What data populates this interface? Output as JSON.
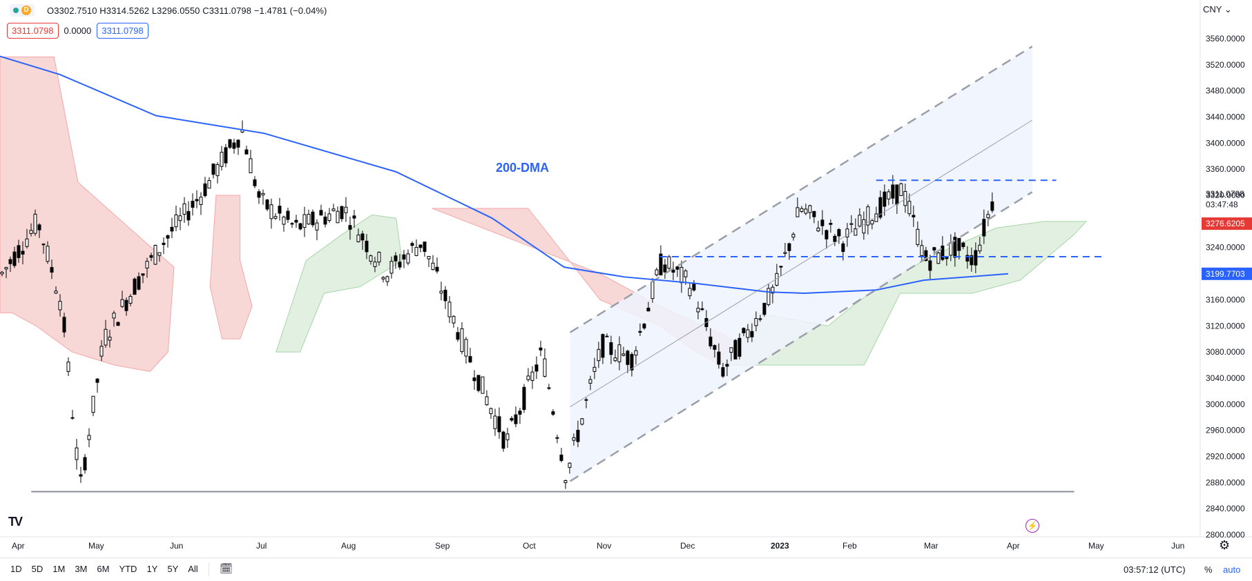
{
  "header": {
    "interval_badge": "D",
    "ohlc_text": "O3302.7510 H3314.5262 L3296.0550 C3311.0798 −1.4781 (−0.04%)",
    "chip_last": "3311.0798",
    "chip_change": "0.0000",
    "chip_close": "3311.0798",
    "currency": "CNY"
  },
  "colors": {
    "candle_body_up": "#ffffff",
    "candle_body_down": "#000000",
    "dma": "#2962ff",
    "cloud_bearish": "#f8d7d7",
    "cloud_bullish": "#e1f0e1",
    "channel_fill": "#eef3fd",
    "last_price": "#e53935",
    "dma_label": "#2962ff"
  },
  "chart_data": {
    "type": "candlestick",
    "title": "",
    "price_range": [
      2800,
      3570
    ],
    "y_ticks": [
      "3560.0000",
      "3520.0000",
      "3480.0000",
      "3440.0000",
      "3400.0000",
      "3360.0000",
      "3320.0000",
      "3280.0000",
      "3240.0000",
      "3200.0000",
      "3160.0000",
      "3120.0000",
      "3080.0000",
      "3040.0000",
      "3000.0000",
      "2960.0000",
      "2920.0000",
      "2880.0000",
      "2840.0000",
      "2800.0000"
    ],
    "x_ticks": [
      "Apr",
      "May",
      "Jun",
      "Jul",
      "Aug",
      "Sep",
      "Oct",
      "Nov",
      "Dec",
      "2023",
      "Feb",
      "Mar",
      "Apr",
      "May",
      "Jun"
    ],
    "annotation": "200-DMA",
    "price_labels": {
      "last_price": "3311.0798",
      "countdown": "03:47:48",
      "cloud_edge": "3276.6205",
      "dma_value": "3199.7703"
    },
    "dma_200": [
      {
        "t": 0.0,
        "v": 3533
      },
      {
        "t": 0.05,
        "v": 3505
      },
      {
        "t": 0.13,
        "v": 3442
      },
      {
        "t": 0.22,
        "v": 3415
      },
      {
        "t": 0.33,
        "v": 3356
      },
      {
        "t": 0.41,
        "v": 3285
      },
      {
        "t": 0.47,
        "v": 3210
      },
      {
        "t": 0.52,
        "v": 3195
      },
      {
        "t": 0.58,
        "v": 3185
      },
      {
        "t": 0.64,
        "v": 3172
      },
      {
        "t": 0.67,
        "v": 3170
      },
      {
        "t": 0.73,
        "v": 3175
      },
      {
        "t": 0.77,
        "v": 3190
      },
      {
        "t": 0.84,
        "v": 3199.77
      }
    ],
    "ichimoku_cloud": {
      "bearish": [
        [
          [
            0.0,
            3532
          ],
          [
            0.045,
            3532
          ],
          [
            0.065,
            3340
          ],
          [
            0.12,
            3250
          ],
          [
            0.145,
            3210
          ],
          [
            0.14,
            3080
          ],
          [
            0.125,
            3050
          ],
          [
            0.095,
            3060
          ],
          [
            0.06,
            3080
          ],
          [
            0.03,
            3120
          ],
          [
            0.01,
            3140
          ],
          [
            0.0,
            3140
          ]
        ],
        [
          [
            0.36,
            3300
          ],
          [
            0.44,
            3300
          ],
          [
            0.5,
            3160
          ],
          [
            0.55,
            3120
          ],
          [
            0.58,
            3080
          ],
          [
            0.6,
            3060
          ],
          [
            0.61,
            3100
          ],
          [
            0.55,
            3150
          ],
          [
            0.5,
            3200
          ]
        ],
        [
          [
            0.18,
            3320
          ],
          [
            0.2,
            3320
          ],
          [
            0.2,
            3220
          ],
          [
            0.21,
            3150
          ],
          [
            0.2,
            3100
          ],
          [
            0.185,
            3100
          ],
          [
            0.175,
            3180
          ]
        ]
      ],
      "bullish": [
        [
          [
            0.23,
            3080
          ],
          [
            0.255,
            3220
          ],
          [
            0.285,
            3260
          ],
          [
            0.31,
            3290
          ],
          [
            0.33,
            3285
          ],
          [
            0.335,
            3220
          ],
          [
            0.3,
            3180
          ],
          [
            0.27,
            3170
          ],
          [
            0.25,
            3080
          ]
        ],
        [
          [
            0.6,
            3060
          ],
          [
            0.63,
            3140
          ],
          [
            0.66,
            3130
          ],
          [
            0.69,
            3120
          ],
          [
            0.71,
            3150
          ],
          [
            0.74,
            3190
          ],
          [
            0.78,
            3230
          ],
          [
            0.83,
            3270
          ],
          [
            0.87,
            3280
          ],
          [
            0.905,
            3280
          ],
          [
            0.895,
            3260
          ],
          [
            0.85,
            3190
          ],
          [
            0.81,
            3170
          ],
          [
            0.75,
            3170
          ],
          [
            0.72,
            3060
          ],
          [
            0.63,
            3060
          ]
        ]
      ]
    },
    "channel": {
      "lower_start": {
        "t": 0.475,
        "v": 2882
      },
      "lower_end": {
        "t": 0.86,
        "v": 3325
      },
      "upper_start": {
        "t": 0.475,
        "v": 3110
      },
      "upper_end": {
        "t": 0.86,
        "v": 3548
      },
      "mid_start": {
        "t": 0.475,
        "v": 2996
      },
      "mid_end": {
        "t": 0.86,
        "v": 3435
      }
    },
    "horizontal_levels": [
      {
        "name": "resistance",
        "v": 3343,
        "t0": 0.73,
        "t1": 0.88,
        "style": "dashed"
      },
      {
        "name": "support",
        "v": 3226,
        "t0": 0.55,
        "t1": 0.92,
        "style": "dashed"
      },
      {
        "name": "low",
        "v": 2866,
        "t0": 0.026,
        "t1": 0.895,
        "style": "solid"
      }
    ]
  },
  "bottom_bar": {
    "periods": [
      "1D",
      "5D",
      "1M",
      "3M",
      "6M",
      "YTD",
      "1Y",
      "5Y",
      "All"
    ],
    "clock": "03:57:12 (UTC)",
    "percent": "%",
    "auto": "auto"
  }
}
